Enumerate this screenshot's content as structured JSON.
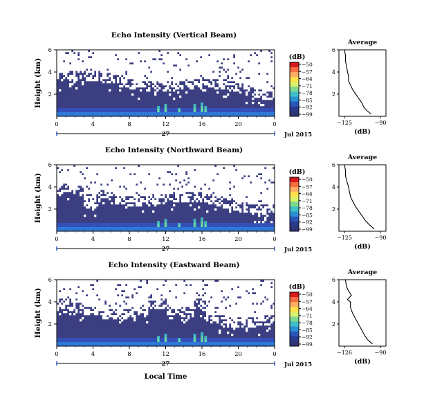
{
  "chart_data": [
    {
      "type": "heatmap",
      "title": "Echo Intensity (Vertical Beam)",
      "ylabel": "Height (km)",
      "ylim": [
        0,
        6
      ],
      "yticks": [
        "6",
        "4",
        "2"
      ],
      "xticks": [
        "0",
        "4",
        "8",
        "12",
        "16",
        "20",
        "0"
      ],
      "xlim": [
        0,
        24
      ],
      "date_day": "27",
      "date_month_year": "Jul 2015",
      "colorbar": {
        "unit": "(dB)",
        "labels": [
          "−50",
          "−57",
          "−64",
          "−71",
          "−78",
          "−85",
          "−92",
          "−99"
        ],
        "range": [
          -99,
          -50
        ]
      },
      "average": {
        "title": "Average",
        "xlabel": "(dB)",
        "xticks": [
          "−125",
          "−90"
        ],
        "xlim": [
          -125,
          -90
        ],
        "yticks": [
          "6",
          "4",
          "2"
        ],
        "profile": [
          [
            -99,
            0.2
          ],
          [
            -103,
            0.5
          ],
          [
            -106,
            0.8
          ],
          [
            -108,
            1.2
          ],
          [
            -111,
            1.6
          ],
          [
            -114,
            2.0
          ],
          [
            -117,
            2.4
          ],
          [
            -119,
            2.8
          ],
          [
            -121,
            3.2
          ],
          [
            -121,
            3.6
          ],
          [
            -122,
            4.0
          ],
          [
            -123,
            4.5
          ],
          [
            -124,
            5.0
          ],
          [
            -124,
            5.5
          ],
          [
            -125,
            6.0
          ]
        ]
      }
    },
    {
      "type": "heatmap",
      "title": "Echo Intensity (Northward Beam)",
      "ylabel": "Height (km)",
      "ylim": [
        0,
        6
      ],
      "yticks": [
        "6",
        "4",
        "2"
      ],
      "xticks": [
        "0",
        "4",
        "8",
        "12",
        "16",
        "20",
        "0"
      ],
      "xlim": [
        0,
        24
      ],
      "date_day": "27",
      "date_month_year": "Jul 2015",
      "colorbar": {
        "unit": "(dB)",
        "labels": [
          "−50",
          "−57",
          "−64",
          "−71",
          "−78",
          "−85",
          "−92",
          "−99"
        ],
        "range": [
          -99,
          -50
        ]
      },
      "average": {
        "title": "Average",
        "xlabel": "(dB)",
        "xticks": [
          "−125",
          "−90"
        ],
        "xlim": [
          -125,
          -90
        ],
        "yticks": [
          "6",
          "4",
          "2"
        ],
        "profile": [
          [
            -96,
            0.2
          ],
          [
            -101,
            0.6
          ],
          [
            -105,
            1.0
          ],
          [
            -108,
            1.4
          ],
          [
            -111,
            1.8
          ],
          [
            -114,
            2.2
          ],
          [
            -117,
            2.7
          ],
          [
            -119,
            3.1
          ],
          [
            -120,
            3.5
          ],
          [
            -121,
            4.0
          ],
          [
            -123,
            4.6
          ],
          [
            -124,
            5.0
          ],
          [
            -124,
            5.5
          ],
          [
            -125,
            6.0
          ]
        ]
      }
    },
    {
      "type": "heatmap",
      "title": "Echo Intensity (Eastward Beam)",
      "ylabel": "Height (km)",
      "xlabel": "Local Time",
      "ylim": [
        0,
        6
      ],
      "yticks": [
        "6",
        "4",
        "2"
      ],
      "xticks": [
        "0",
        "4",
        "8",
        "12",
        "16",
        "20",
        "0"
      ],
      "xlim": [
        0,
        24
      ],
      "date_day": "27",
      "date_month_year": "Jul 2015",
      "colorbar": {
        "unit": "(dB)",
        "labels": [
          "−50",
          "−57",
          "−64",
          "−71",
          "−78",
          "−85",
          "−92",
          "−99"
        ],
        "range": [
          -99,
          -50
        ]
      },
      "average": {
        "title": "Average",
        "xlabel": "(dB)",
        "xticks": [
          "−126",
          "−90"
        ],
        "xlim": [
          -126,
          -90
        ],
        "yticks": [
          "6",
          "4",
          "2"
        ],
        "profile": [
          [
            -98,
            0.2
          ],
          [
            -103,
            0.6
          ],
          [
            -106,
            1.0
          ],
          [
            -109,
            1.5
          ],
          [
            -112,
            2.0
          ],
          [
            -115,
            2.5
          ],
          [
            -118,
            3.0
          ],
          [
            -120,
            3.5
          ],
          [
            -120,
            4.0
          ],
          [
            -123,
            4.2
          ],
          [
            -119,
            4.6
          ],
          [
            -122,
            5.0
          ],
          [
            -124,
            5.4
          ],
          [
            -125,
            6.0
          ]
        ]
      }
    }
  ]
}
